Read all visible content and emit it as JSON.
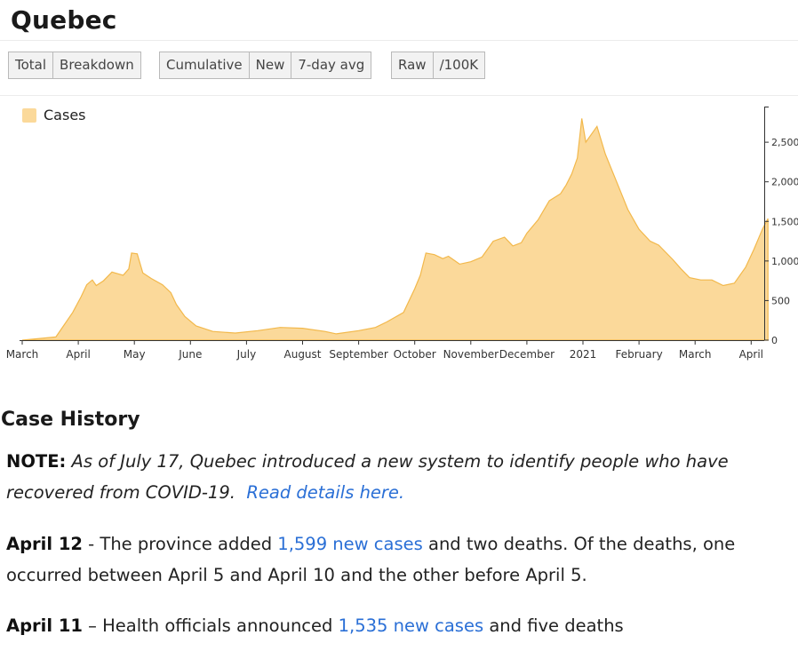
{
  "page": {
    "title": "Quebec"
  },
  "controls": {
    "group1": [
      {
        "label": "Total",
        "active": true
      },
      {
        "label": "Breakdown",
        "active": false
      }
    ],
    "group2": [
      {
        "label": "Cumulative",
        "active": false
      },
      {
        "label": "New",
        "active": false
      },
      {
        "label": "7-day avg",
        "active": true
      }
    ],
    "group3": [
      {
        "label": "Raw",
        "active": true
      },
      {
        "label": "/100K",
        "active": false
      }
    ]
  },
  "chart_data": {
    "type": "area",
    "series": [
      {
        "name": "Cases",
        "color": "#fbd99a",
        "stroke": "#f2b84b"
      }
    ],
    "x_labels": [
      "March",
      "April",
      "May",
      "June",
      "July",
      "August",
      "September",
      "October",
      "November",
      "December",
      "2021",
      "February",
      "March",
      "April"
    ],
    "y_ticks": [
      "0",
      "500",
      "1,000",
      "1,500",
      "2,000",
      "2,500"
    ],
    "ylim": [
      0,
      2950
    ],
    "axis_position": "right",
    "points": [
      [
        0,
        0
      ],
      [
        0.6,
        40
      ],
      [
        0.9,
        350
      ],
      [
        1.05,
        550
      ],
      [
        1.15,
        700
      ],
      [
        1.25,
        760
      ],
      [
        1.32,
        690
      ],
      [
        1.45,
        750
      ],
      [
        1.6,
        860
      ],
      [
        1.8,
        820
      ],
      [
        1.9,
        900
      ],
      [
        1.95,
        1100
      ],
      [
        2.05,
        1090
      ],
      [
        2.15,
        850
      ],
      [
        2.3,
        780
      ],
      [
        2.5,
        700
      ],
      [
        2.65,
        600
      ],
      [
        2.75,
        450
      ],
      [
        2.9,
        300
      ],
      [
        3.1,
        180
      ],
      [
        3.4,
        110
      ],
      [
        3.8,
        90
      ],
      [
        4.2,
        120
      ],
      [
        4.6,
        160
      ],
      [
        5.0,
        150
      ],
      [
        5.4,
        110
      ],
      [
        5.6,
        80
      ],
      [
        6.0,
        120
      ],
      [
        6.3,
        160
      ],
      [
        6.5,
        230
      ],
      [
        6.8,
        350
      ],
      [
        7.0,
        650
      ],
      [
        7.1,
        820
      ],
      [
        7.2,
        1100
      ],
      [
        7.35,
        1080
      ],
      [
        7.5,
        1030
      ],
      [
        7.6,
        1060
      ],
      [
        7.8,
        960
      ],
      [
        8.0,
        990
      ],
      [
        8.2,
        1050
      ],
      [
        8.4,
        1250
      ],
      [
        8.6,
        1300
      ],
      [
        8.75,
        1190
      ],
      [
        8.9,
        1230
      ],
      [
        9.0,
        1350
      ],
      [
        9.2,
        1520
      ],
      [
        9.4,
        1760
      ],
      [
        9.6,
        1850
      ],
      [
        9.7,
        1960
      ],
      [
        9.8,
        2100
      ],
      [
        9.9,
        2300
      ],
      [
        9.98,
        2800
      ],
      [
        10.05,
        2500
      ],
      [
        10.15,
        2600
      ],
      [
        10.25,
        2700
      ],
      [
        10.4,
        2350
      ],
      [
        10.6,
        2000
      ],
      [
        10.8,
        1650
      ],
      [
        11.0,
        1400
      ],
      [
        11.2,
        1250
      ],
      [
        11.35,
        1200
      ],
      [
        11.6,
        1020
      ],
      [
        11.75,
        900
      ],
      [
        11.9,
        790
      ],
      [
        12.1,
        760
      ],
      [
        12.3,
        760
      ],
      [
        12.5,
        690
      ],
      [
        12.7,
        720
      ],
      [
        12.9,
        920
      ],
      [
        13.05,
        1150
      ],
      [
        13.2,
        1400
      ],
      [
        13.3,
        1535
      ]
    ]
  },
  "history": {
    "heading": "Case History",
    "note_label": "NOTE:",
    "note_text": "As of July 17, Quebec introduced a new system to identify people who have recovered from COVID-19.",
    "note_link": "Read details here.",
    "entries": [
      {
        "date": "April 12",
        "pre": " - The province added ",
        "link": "1,599 new cases",
        "post": " and two deaths. Of the deaths, one occurred between April 5 and April 10 and the other before April 5."
      },
      {
        "date": "April 11",
        "pre": " – Health officials announced ",
        "link": "1,535 new cases",
        "post": " and five deaths"
      }
    ]
  }
}
